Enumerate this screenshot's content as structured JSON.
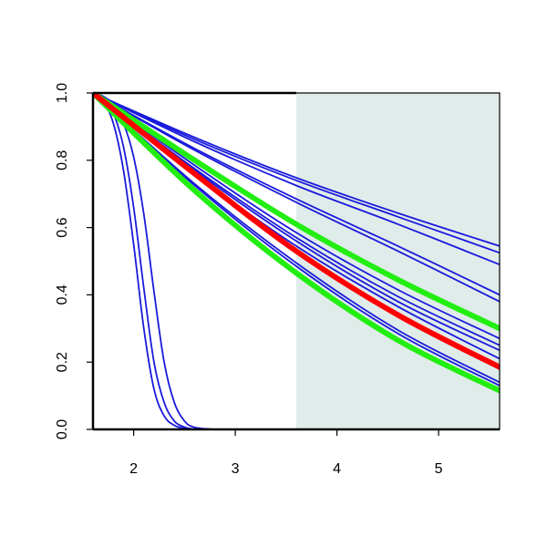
{
  "chart_data": {
    "type": "line",
    "title": "",
    "xlabel": "",
    "ylabel": "",
    "xlim": [
      1.6,
      5.6
    ],
    "ylim": [
      0,
      1
    ],
    "x_ticks": [
      "2",
      "3",
      "4",
      "5"
    ],
    "y_ticks": [
      "0.0",
      "0.2",
      "0.4",
      "0.6",
      "0.8",
      "1.0"
    ],
    "grid": false,
    "legend": "none",
    "shaded_region": {
      "x_from": 3.6,
      "x_to": 5.6,
      "color": "#e0ecea"
    },
    "colors": {
      "blue": "#1a1adc",
      "red": "#ff0000",
      "green": "#22ee11"
    },
    "series": [
      {
        "color": "blue",
        "width": "thin",
        "x": [
          1.6,
          1.7,
          1.8,
          1.9,
          2.0,
          2.1,
          2.2,
          2.3,
          2.4,
          2.5,
          2.6,
          2.8,
          3.0,
          5.6
        ],
        "y": [
          1.0,
          0.975,
          0.91,
          0.77,
          0.55,
          0.3,
          0.12,
          0.04,
          0.012,
          0.003,
          0.0,
          0.0,
          0.0,
          0.0
        ]
      },
      {
        "color": "blue",
        "width": "thin",
        "x": [
          1.6,
          1.7,
          1.8,
          1.9,
          2.0,
          2.1,
          2.2,
          2.3,
          2.4,
          2.5,
          2.6,
          2.8,
          3.0,
          5.6
        ],
        "y": [
          1.0,
          0.985,
          0.94,
          0.84,
          0.66,
          0.42,
          0.2,
          0.08,
          0.025,
          0.007,
          0.001,
          0.0,
          0.0,
          0.0
        ]
      },
      {
        "color": "blue",
        "width": "thin",
        "x": [
          1.6,
          1.7,
          1.8,
          1.9,
          2.0,
          2.1,
          2.2,
          2.3,
          2.4,
          2.5,
          2.6,
          2.8,
          3.0,
          5.6
        ],
        "y": [
          1.0,
          0.99,
          0.965,
          0.91,
          0.81,
          0.64,
          0.41,
          0.2,
          0.08,
          0.025,
          0.006,
          0.0,
          0.0,
          0.0
        ]
      },
      {
        "color": "blue",
        "width": "thin",
        "x": [
          1.6,
          2.6,
          3.6,
          4.6,
          5.6
        ],
        "y": [
          1.0,
          0.868,
          0.748,
          0.643,
          0.545
        ]
      },
      {
        "color": "blue",
        "width": "thin",
        "x": [
          1.6,
          2.6,
          3.6,
          4.6,
          5.6
        ],
        "y": [
          1.0,
          0.862,
          0.74,
          0.632,
          0.525
        ]
      },
      {
        "color": "blue",
        "width": "thin",
        "x": [
          1.6,
          2.6,
          3.6,
          4.6,
          5.6
        ],
        "y": [
          1.0,
          0.855,
          0.725,
          0.61,
          0.49
        ]
      },
      {
        "color": "blue",
        "width": "thin",
        "x": [
          1.6,
          2.6,
          3.6,
          4.6,
          5.6
        ],
        "y": [
          1.0,
          0.835,
          0.685,
          0.545,
          0.4
        ]
      },
      {
        "color": "blue",
        "width": "thin",
        "x": [
          1.6,
          2.6,
          3.6,
          4.6,
          5.6
        ],
        "y": [
          1.0,
          0.83,
          0.675,
          0.53,
          0.38
        ]
      },
      {
        "color": "blue",
        "width": "thin",
        "x": [
          1.6,
          2.6,
          3.6,
          4.6,
          5.6
        ],
        "y": [
          1.0,
          0.8,
          0.61,
          0.44,
          0.3
        ]
      },
      {
        "color": "blue",
        "width": "thin",
        "x": [
          1.6,
          2.6,
          3.6,
          4.6,
          5.6
        ],
        "y": [
          1.0,
          0.785,
          0.585,
          0.415,
          0.27
        ]
      },
      {
        "color": "blue",
        "width": "thin",
        "x": [
          1.6,
          2.6,
          3.6,
          4.6,
          5.6
        ],
        "y": [
          1.0,
          0.775,
          0.57,
          0.395,
          0.25
        ]
      },
      {
        "color": "blue",
        "width": "thin",
        "x": [
          1.6,
          2.6,
          3.6,
          4.6,
          5.6
        ],
        "y": [
          1.0,
          0.77,
          0.56,
          0.38,
          0.235
        ]
      },
      {
        "color": "blue",
        "width": "thin",
        "x": [
          1.6,
          2.6,
          3.6,
          4.6,
          5.6
        ],
        "y": [
          1.0,
          0.76,
          0.545,
          0.365,
          0.21
        ]
      },
      {
        "color": "blue",
        "width": "thin",
        "x": [
          1.6,
          2.6,
          3.6,
          4.6,
          5.6
        ],
        "y": [
          1.0,
          0.73,
          0.495,
          0.295,
          0.14
        ]
      },
      {
        "color": "blue",
        "width": "thin",
        "x": [
          1.6,
          2.6,
          3.6,
          4.6,
          5.6
        ],
        "y": [
          1.0,
          0.725,
          0.485,
          0.285,
          0.13
        ]
      },
      {
        "color": "green",
        "width": "thick",
        "x": [
          1.6,
          2.6,
          3.6,
          4.6,
          5.6
        ],
        "y": [
          1.0,
          0.8,
          0.61,
          0.445,
          0.3
        ]
      },
      {
        "color": "green",
        "width": "thick",
        "x": [
          1.6,
          2.6,
          3.6,
          4.6,
          5.6
        ],
        "y": [
          1.0,
          0.71,
          0.465,
          0.265,
          0.115
        ]
      },
      {
        "color": "red",
        "width": "thick",
        "x": [
          1.6,
          2.6,
          3.6,
          4.6,
          5.6
        ],
        "y": [
          1.0,
          0.76,
          0.53,
          0.34,
          0.185
        ]
      }
    ]
  }
}
